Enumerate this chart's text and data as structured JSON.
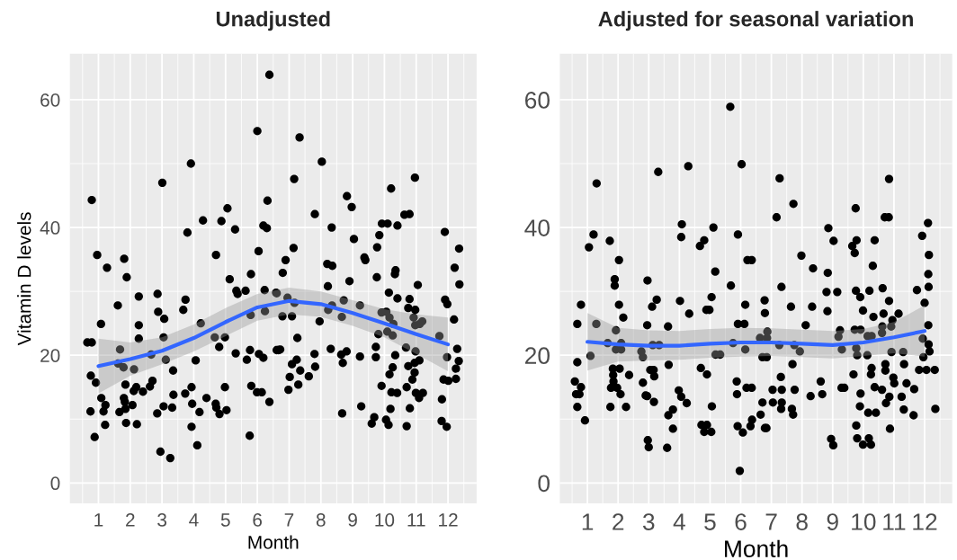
{
  "chart_data": [
    {
      "type": "scatter",
      "title": "Unadjusted",
      "xlabel": "Month",
      "ylabel": "Vitamin D levels",
      "xlim": [
        0.1,
        12.9
      ],
      "ylim": [
        -3.2,
        67.2
      ],
      "xticks": [
        1,
        2,
        3,
        4,
        5,
        6,
        7,
        8,
        9,
        10,
        11,
        12
      ],
      "yticks": [
        0,
        20,
        40,
        60
      ],
      "grid": true,
      "series": [
        {
          "type": "scatter",
          "marker": "circle",
          "color": "#000000",
          "x": [
            0.79,
            0.96,
            1.27,
            0.65,
            0.79,
            1.08,
            0.76,
            0.92,
            0.75,
            0.88,
            1.09,
            1.22,
            1.16,
            1.21,
            1.81,
            1.89,
            1.61,
            1.68,
            1.62,
            1.79,
            1.85,
            1.8,
            1.83,
            1.85,
            1.66,
            1.87,
            2.27,
            2.27,
            2.27,
            2.12,
            2.11,
            2.19,
            2.07,
            2.21,
            2.4,
            2.66,
            2.7,
            2.62,
            2.85,
            2.86,
            2.88,
            3.07,
            3.05,
            3.12,
            3.01,
            2.95,
            3.26,
            3.05,
            3.35,
            3.36,
            3.32,
            3.67,
            3.74,
            3.8,
            3.91,
            3.73,
            3.93,
            3.95,
            3.93,
            4.11,
            4.06,
            4.22,
            4.29,
            4.18,
            4.4,
            4.7,
            4.87,
            4.66,
            4.8,
            4.98,
            4.69,
            4.71,
            4.81,
            4.98,
            5.03,
            5.06,
            5.13,
            5.3,
            5.34,
            5.38,
            5.63,
            5.32,
            5.67,
            5.77,
            5.8,
            5.79,
            5.76,
            5.81,
            6.0,
            6.04,
            5.99,
            6.14,
            6.05,
            6.19,
            6.38,
            6.19,
            6.3,
            6.32,
            6.23,
            6.24,
            6.38,
            6.59,
            6.61,
            7.33,
            8.03,
            7.16,
            7.81,
            8.34,
            8.82,
            8.97,
            9.04,
            7.14,
            6.89,
            6.8,
            6.61,
            6.95,
            7.17,
            6.79,
            7.09,
            7.26,
            6.67,
            6.72,
            7.24,
            7.09,
            7.35,
            7.02,
            7.62,
            7.29,
            6.98,
            8.2,
            8.36,
            8.22,
            7.96,
            8.23,
            8.35,
            7.8,
            7.82,
            8.31,
            8.64,
            8.69,
            8.81,
            8.72,
            8.66,
            8.9,
            8.67,
            9.27,
            9.23,
            9.23,
            9.37,
            9.4,
            9.77,
            9.84,
            9.92,
            10.1,
            10.41,
            10.21,
            10.63,
            10.79,
            10.96,
            9.76,
            10.14,
            10.35,
            10.33,
            10.41,
            9.91,
            10.06,
            10.16,
            10.28,
            10.09,
            10.26,
            9.81,
            9.73,
            9.73,
            9.91,
            10.16,
            10.26,
            10.34,
            10.22,
            10.4,
            10.19,
            9.68,
            9.6,
            10.05,
            10.13,
            10.7,
            10.8,
            10.7,
            10.75,
            10.68,
            10.79,
            10.75,
            10.97,
            10.92,
            11.05,
            10.97,
            11.11,
            11.19,
            10.98,
            10.95,
            11.1,
            10.95,
            10.88,
            10.99,
            11.09,
            11.21,
            11.73,
            11.9,
            11.91,
            11.98,
            11.97,
            11.86,
            12.01,
            11.81,
            11.8,
            11.96,
            12.19,
            12.21,
            12.35,
            12.36,
            12.29,
            12.34,
            12.25,
            12.25
          ],
          "values": [
            44.3,
            35.7,
            33.7,
            22.0,
            22.0,
            24.9,
            16.8,
            15.7,
            11.2,
            7.2,
            13.3,
            12.2,
            11.2,
            9.1,
            35.1,
            32.2,
            27.8,
            20.9,
            18.7,
            18.1,
            15.4,
            13.3,
            12.7,
            11.6,
            11.1,
            9.4,
            29.2,
            24.7,
            22.6,
            17.8,
            14.4,
            15.0,
            12.2,
            9.2,
            14.3,
            20.1,
            16.0,
            15.1,
            10.9,
            29.6,
            26.8,
            25.7,
            22.8,
            19.3,
            47.0,
            4.9,
            3.9,
            12.0,
            17.6,
            13.8,
            11.8,
            27.1,
            28.7,
            39.2,
            50.0,
            14.0,
            15.0,
            12.4,
            8.8,
            5.9,
            19.2,
            25.0,
            41.1,
            11.1,
            13.3,
            35.7,
            41.0,
            22.8,
            21.3,
            22.8,
            12.4,
            11.8,
            10.8,
            15.0,
            11.4,
            43.0,
            31.9,
            39.7,
            30.1,
            29.6,
            30.1,
            20.3,
            19.3,
            20.8,
            32.7,
            26.3,
            7.4,
            15.2,
            55.1,
            36.3,
            14.2,
            14.2,
            20.2,
            19.6,
            12.7,
            40.3,
            39.9,
            44.2,
            30.2,
            26.9,
            63.9,
            29.8,
            20.8,
            54.1,
            50.3,
            47.6,
            42.1,
            40.0,
            44.9,
            43.2,
            38.2,
            36.8,
            34.9,
            32.9,
            29.7,
            29.0,
            28.2,
            26.1,
            26.1,
            22.7,
            20.8,
            20.9,
            19.3,
            18.6,
            17.6,
            16.6,
            16.7,
            15.4,
            14.6,
            34.3,
            34.0,
            30.8,
            25.3,
            27.1,
            27.8,
            20.2,
            18.2,
            21.0,
            20.1,
            18.8,
            20.6,
            28.6,
            26.0,
            31.6,
            10.9,
            12.0,
            19.8,
            27.8,
            35.3,
            34.9,
            36.9,
            38.8,
            40.6,
            40.6,
            40.3,
            46.1,
            42.0,
            42.1,
            47.8,
            32.2,
            29.8,
            33.3,
            32.7,
            28.9,
            26.7,
            26.8,
            25.9,
            24.9,
            23.7,
            23.1,
            23.3,
            21.3,
            19.7,
            15.2,
            17.0,
            18.1,
            20.0,
            14.2,
            14.1,
            11.6,
            10.3,
            9.3,
            9.9,
            9.1,
            8.9,
            11.7,
            15.0,
            18.3,
            21.2,
            28.8,
            27.4,
            27.1,
            25.9,
            31.0,
            24.7,
            24.9,
            25.3,
            20.6,
            18.8,
            19.2,
            17.3,
            16.2,
            14.1,
            13.3,
            14.1,
            23.0,
            39.3,
            28.7,
            28.0,
            19.7,
            16.2,
            16.0,
            13.1,
            9.7,
            8.8,
            25.6,
            33.7,
            36.7,
            31.1,
            21.0,
            19.1,
            17.9,
            16.3
          ]
        },
        {
          "type": "line",
          "color": "#3366ff",
          "x": [
            1,
            2,
            3,
            4,
            5,
            6,
            7,
            8,
            9,
            10,
            11,
            12
          ],
          "values": [
            18.3,
            19.4,
            20.7,
            22.7,
            25.2,
            27.5,
            28.5,
            28.0,
            26.6,
            25.0,
            23.3,
            21.7
          ],
          "lower": [
            14.0,
            16.8,
            18.6,
            20.6,
            23.0,
            25.4,
            26.4,
            26.0,
            24.6,
            22.8,
            20.2,
            17.5
          ],
          "upper": [
            22.6,
            22.0,
            22.8,
            24.8,
            27.4,
            29.6,
            30.6,
            30.0,
            28.6,
            27.2,
            26.4,
            25.9
          ]
        }
      ]
    },
    {
      "type": "scatter",
      "title": "Adjusted for seasonal variation",
      "xlabel": "Month",
      "xlim": [
        0.1,
        12.9
      ],
      "ylim": [
        -3.2,
        67.2
      ],
      "xticks": [
        1,
        2,
        3,
        4,
        5,
        6,
        7,
        8,
        9,
        10,
        11,
        12
      ],
      "yticks": [
        0,
        20,
        40,
        60
      ],
      "grid": true,
      "series": [
        {
          "type": "scatter",
          "marker": "circle",
          "color": "#000000",
          "x": [
            1.3,
            1.2,
            1.05,
            0.79,
            0.67,
            1.29,
            1.1,
            0.67,
            0.59,
            0.63,
            0.74,
            0.79,
            0.67,
            0.92,
            1.73,
            2.03,
            1.89,
            1.89,
            2.03,
            2.17,
            1.93,
            1.66,
            2.1,
            1.93,
            2.1,
            1.83,
            2.05,
            1.84,
            1.85,
            1.77,
            1.97,
            2.08,
            1.75,
            2.26,
            2.36,
            2.96,
            3.11,
            3.26,
            3.31,
            2.95,
            2.76,
            2.81,
            3.13,
            3.34,
            3.05,
            3.16,
            3.18,
            2.81,
            2.9,
            2.95,
            3.17,
            2.97,
            3.0,
            3.6,
            3.63,
            3.65,
            3.64,
            3.79,
            3.79,
            3.98,
            4.06,
            4.24,
            4.02,
            4.08,
            4.06,
            4.29,
            4.32,
            4.67,
            4.81,
            4.88,
            4.98,
            5.05,
            5.11,
            5.17,
            5.18,
            5.33,
            4.7,
            4.9,
            5.06,
            4.72,
            4.9,
            4.81,
            5.04,
            5.66,
            5.68,
            6.03,
            5.91,
            6.22,
            6.36,
            6.15,
            5.91,
            6.12,
            5.75,
            6.15,
            5.87,
            5.88,
            6.19,
            6.36,
            5.9,
            6.07,
            5.97,
            6.32,
            6.37,
            6.65,
            6.71,
            6.79,
            6.84,
            6.78,
            6.79,
            6.63,
            6.86,
            6.87,
            6.71,
            6.85,
            7.27,
            7.17,
            7.72,
            7.33,
            7.64,
            7.26,
            7.75,
            7.93,
            7.69,
            7.31,
            7.04,
            7.34,
            7.05,
            7.34,
            7.32,
            7.67,
            7.71,
            7.76,
            7.98,
            8.36,
            8.12,
            8.33,
            8.28,
            8.61,
            8.66,
            8.86,
            9.03,
            8.84,
            8.8,
            9.15,
            8.83,
            9.24,
            9.19,
            9.3,
            9.29,
            9.38,
            8.95,
            9.02,
            9.64,
            9.72,
            9.78,
            9.75,
            9.76,
            9.9,
            9.99,
            10.2,
            10.37,
            10.31,
            10.33,
            9.72,
            9.91,
            10.14,
            10.27,
            9.77,
            9.8,
            10.13,
            9.68,
            10.27,
            10.25,
            9.91,
            9.89,
            10.37,
            10.16,
            10.41,
            9.77,
            9.8,
            9.99,
            10.18,
            10.25,
            10.84,
            10.7,
            10.83,
            10.63,
            10.84,
            10.66,
            11.15,
            10.95,
            10.62,
            10.91,
            10.61,
            10.92,
            11.3,
            10.72,
            10.72,
            11.33,
            10.98,
            11.01,
            11.41,
            10.61,
            10.85,
            10.74,
            11.25,
            11.32,
            11.66,
            11.64,
            10.87,
            11.75,
            12.0,
            11.92,
            12.11,
            12.14,
            12.12,
            12.13,
            12.12,
            11.94,
            12.13,
            12.16,
            11.96,
            11.82,
            12.06,
            12.33,
            12.35
          ],
          "values": [
            46.9,
            38.9,
            36.9,
            27.9,
            24.9,
            24.9,
            19.9,
            18.9,
            15.9,
            13.9,
            13.9,
            15.0,
            11.9,
            9.8,
            37.9,
            34.9,
            31.9,
            30.9,
            27.9,
            25.9,
            23.9,
            21.9,
            21.9,
            20.9,
            20.9,
            17.9,
            17.9,
            16.9,
            15.9,
            14.9,
            14.9,
            13.9,
            11.9,
            11.9,
            16.9,
            31.7,
            27.6,
            28.7,
            48.7,
            24.7,
            20.6,
            19.7,
            21.6,
            21.6,
            17.7,
            17.7,
            16.7,
            15.7,
            13.7,
            13.6,
            12.7,
            6.7,
            5.6,
            5.5,
            24.5,
            18.5,
            10.6,
            11.5,
            8.5,
            14.5,
            13.5,
            12.5,
            28.5,
            40.5,
            38.5,
            49.6,
            26.5,
            37.1,
            38.0,
            27.1,
            27.1,
            29.1,
            40.0,
            33.1,
            20.1,
            20.1,
            18.0,
            17.0,
            12.0,
            9.1,
            9.1,
            8.0,
            8.0,
            58.9,
            30.9,
            49.9,
            38.9,
            34.9,
            34.9,
            27.9,
            24.9,
            24.9,
            21.9,
            20.9,
            15.9,
            13.9,
            14.9,
            14.9,
            8.9,
            7.9,
            1.9,
            8.9,
            9.9,
            10.7,
            12.6,
            8.6,
            8.6,
            28.6,
            26.6,
            22.7,
            22.7,
            23.7,
            19.7,
            19.7,
            47.7,
            41.6,
            43.7,
            30.7,
            27.6,
            21.6,
            21.6,
            20.6,
            18.6,
            16.6,
            14.6,
            14.6,
            12.6,
            12.6,
            11.6,
            11.6,
            10.7,
            14.6,
            35.6,
            33.6,
            24.7,
            27.6,
            13.6,
            15.9,
            13.9,
            39.9,
            37.9,
            32.9,
            29.9,
            29.9,
            26.9,
            23.9,
            22.9,
            20.9,
            14.9,
            14.9,
            6.9,
            5.9,
            37.1,
            36.0,
            38.0,
            43.0,
            30.1,
            29.1,
            27.0,
            30.1,
            38.0,
            34.0,
            26.0,
            24.0,
            24.0,
            23.0,
            23.0,
            21.1,
            20.0,
            20.0,
            17.0,
            18.0,
            17.0,
            14.0,
            12.0,
            15.0,
            11.0,
            11.0,
            9.0,
            7.0,
            6.0,
            7.0,
            6.0,
            47.6,
            41.6,
            41.6,
            30.5,
            28.5,
            26.5,
            26.5,
            25.5,
            24.5,
            24.5,
            23.5,
            20.5,
            20.5,
            18.6,
            17.6,
            18.6,
            16.5,
            15.6,
            15.6,
            14.6,
            13.5,
            12.5,
            13.5,
            11.5,
            14.7,
            10.6,
            8.5,
            30.2,
            28.2,
            38.7,
            40.7,
            35.7,
            32.7,
            30.7,
            24.7,
            22.6,
            21.7,
            20.6,
            19.7,
            17.7,
            17.7,
            17.7,
            11.6
          ]
        },
        {
          "type": "line",
          "color": "#3366ff",
          "x": [
            1,
            2,
            3,
            4,
            5,
            6,
            7,
            8,
            9,
            10,
            11,
            12
          ],
          "values": [
            22.1,
            21.7,
            21.5,
            21.5,
            21.8,
            22.0,
            22.0,
            21.8,
            21.6,
            22.0,
            22.8,
            23.8
          ],
          "lower": [
            17.6,
            19.0,
            19.2,
            19.3,
            19.6,
            19.8,
            19.9,
            19.7,
            19.5,
            19.9,
            20.3,
            19.8
          ],
          "upper": [
            26.6,
            24.3,
            23.9,
            23.8,
            24.1,
            24.3,
            24.2,
            24.0,
            23.8,
            24.1,
            25.2,
            27.8
          ]
        }
      ]
    }
  ]
}
